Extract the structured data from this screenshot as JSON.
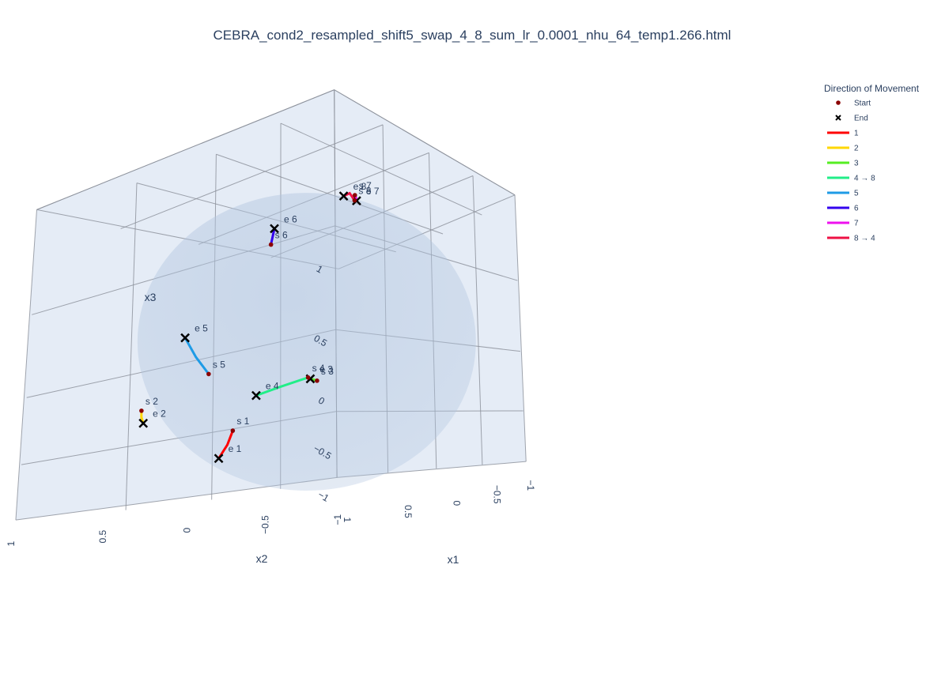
{
  "chart_data": {
    "type": "scatter3d",
    "title": "CEBRA_cond2_resampled_shift5_swap_4_8_sum_lr_0.0001_nhu_64_temp1.266.html",
    "axes": {
      "x1": {
        "label": "x1",
        "range": [
          -1,
          1
        ],
        "ticks": [
          "1",
          "0.5",
          "0",
          "−0.5",
          "−1"
        ]
      },
      "x2": {
        "label": "x2",
        "range": [
          -1,
          1
        ],
        "ticks": [
          "1",
          "0.5",
          "0",
          "−0.5",
          "−1"
        ]
      },
      "x3": {
        "label": "x3",
        "range": [
          -1,
          1
        ],
        "ticks": [
          "1",
          "0.5",
          "0",
          "−0.5",
          "−1"
        ]
      }
    },
    "sphere": {
      "radius": 1,
      "color": "#b0c4de"
    },
    "legend": {
      "title": "Direction of Movement",
      "placement": "top-right",
      "items": [
        {
          "label": "Start",
          "kind": "marker-dot",
          "color": "#8b0000"
        },
        {
          "label": "End",
          "kind": "marker-x",
          "color": "#000000"
        },
        {
          "label": "1",
          "kind": "line",
          "color": "#ff0000"
        },
        {
          "label": "2",
          "kind": "line",
          "color": "#ffd700"
        },
        {
          "label": "3",
          "kind": "line",
          "color": "#55ee22"
        },
        {
          "label": "4 → 8",
          "kind": "line",
          "color": "#22ee88"
        },
        {
          "label": "5",
          "kind": "line",
          "color": "#1e9be6"
        },
        {
          "label": "6",
          "kind": "line",
          "color": "#3300ee"
        },
        {
          "label": "7",
          "kind": "line",
          "color": "#ee11ee"
        },
        {
          "label": "8 → 4",
          "kind": "line",
          "color": "#ee1144"
        }
      ]
    },
    "series": [
      {
        "name": "1",
        "color": "#ff0000",
        "start_label": "s 1",
        "end_label": "e 1",
        "points": [
          [
            0.92,
            -0.16,
            -0.28
          ],
          [
            0.96,
            -0.17,
            -0.4
          ],
          [
            1.0,
            -0.16,
            -0.52
          ]
        ]
      },
      {
        "name": "2",
        "color": "#ffd700",
        "start_label": "s 2",
        "end_label": "e 2",
        "points": [
          [
            0.86,
            0.5,
            -0.12
          ],
          [
            0.8,
            0.57,
            -0.18
          ],
          [
            0.73,
            0.64,
            -0.24
          ]
        ]
      },
      {
        "name": "3",
        "color": "#55ee22",
        "start_label": "s 3",
        "end_label": "e 3",
        "points": [
          [
            -0.6,
            0.78,
            -0.21
          ],
          [
            -0.58,
            0.79,
            -0.2
          ],
          [
            -0.56,
            0.8,
            -0.19
          ]
        ]
      },
      {
        "name": "4 → 8",
        "color": "#22ee88",
        "start_label": "s 4",
        "end_label": "e 4",
        "points": [
          [
            -0.55,
            0.81,
            -0.18
          ],
          [
            -0.4,
            0.89,
            -0.21
          ],
          [
            -0.25,
            0.94,
            -0.24
          ]
        ]
      },
      {
        "name": "5",
        "color": "#1e9be6",
        "start_label": "s 5",
        "end_label": "e 5",
        "points": [
          [
            0.98,
            -0.06,
            0.19
          ],
          [
            0.95,
            0.06,
            0.3
          ],
          [
            0.9,
            0.19,
            0.41
          ]
        ]
      },
      {
        "name": "6",
        "color": "#3300ee",
        "start_label": "s 6",
        "end_label": "e 6",
        "points": [
          [
            0.48,
            0.05,
            0.88
          ],
          [
            0.42,
            0.1,
            0.9
          ],
          [
            0.36,
            0.15,
            0.92
          ]
        ]
      },
      {
        "name": "7",
        "color": "#ee11ee",
        "start_label": "s 7",
        "end_label": "e 7",
        "points": [
          [
            -0.33,
            0.15,
            0.93
          ],
          [
            -0.39,
            0.2,
            0.9
          ],
          [
            -0.45,
            0.25,
            0.86
          ]
        ]
      },
      {
        "name": "8 → 4",
        "color": "#ee1144",
        "start_label": "s 8",
        "end_label": "e 8",
        "points": [
          [
            -0.42,
            0.24,
            0.87
          ],
          [
            -0.28,
            0.15,
            0.95
          ],
          [
            -0.12,
            0.05,
            0.99
          ]
        ]
      }
    ]
  }
}
